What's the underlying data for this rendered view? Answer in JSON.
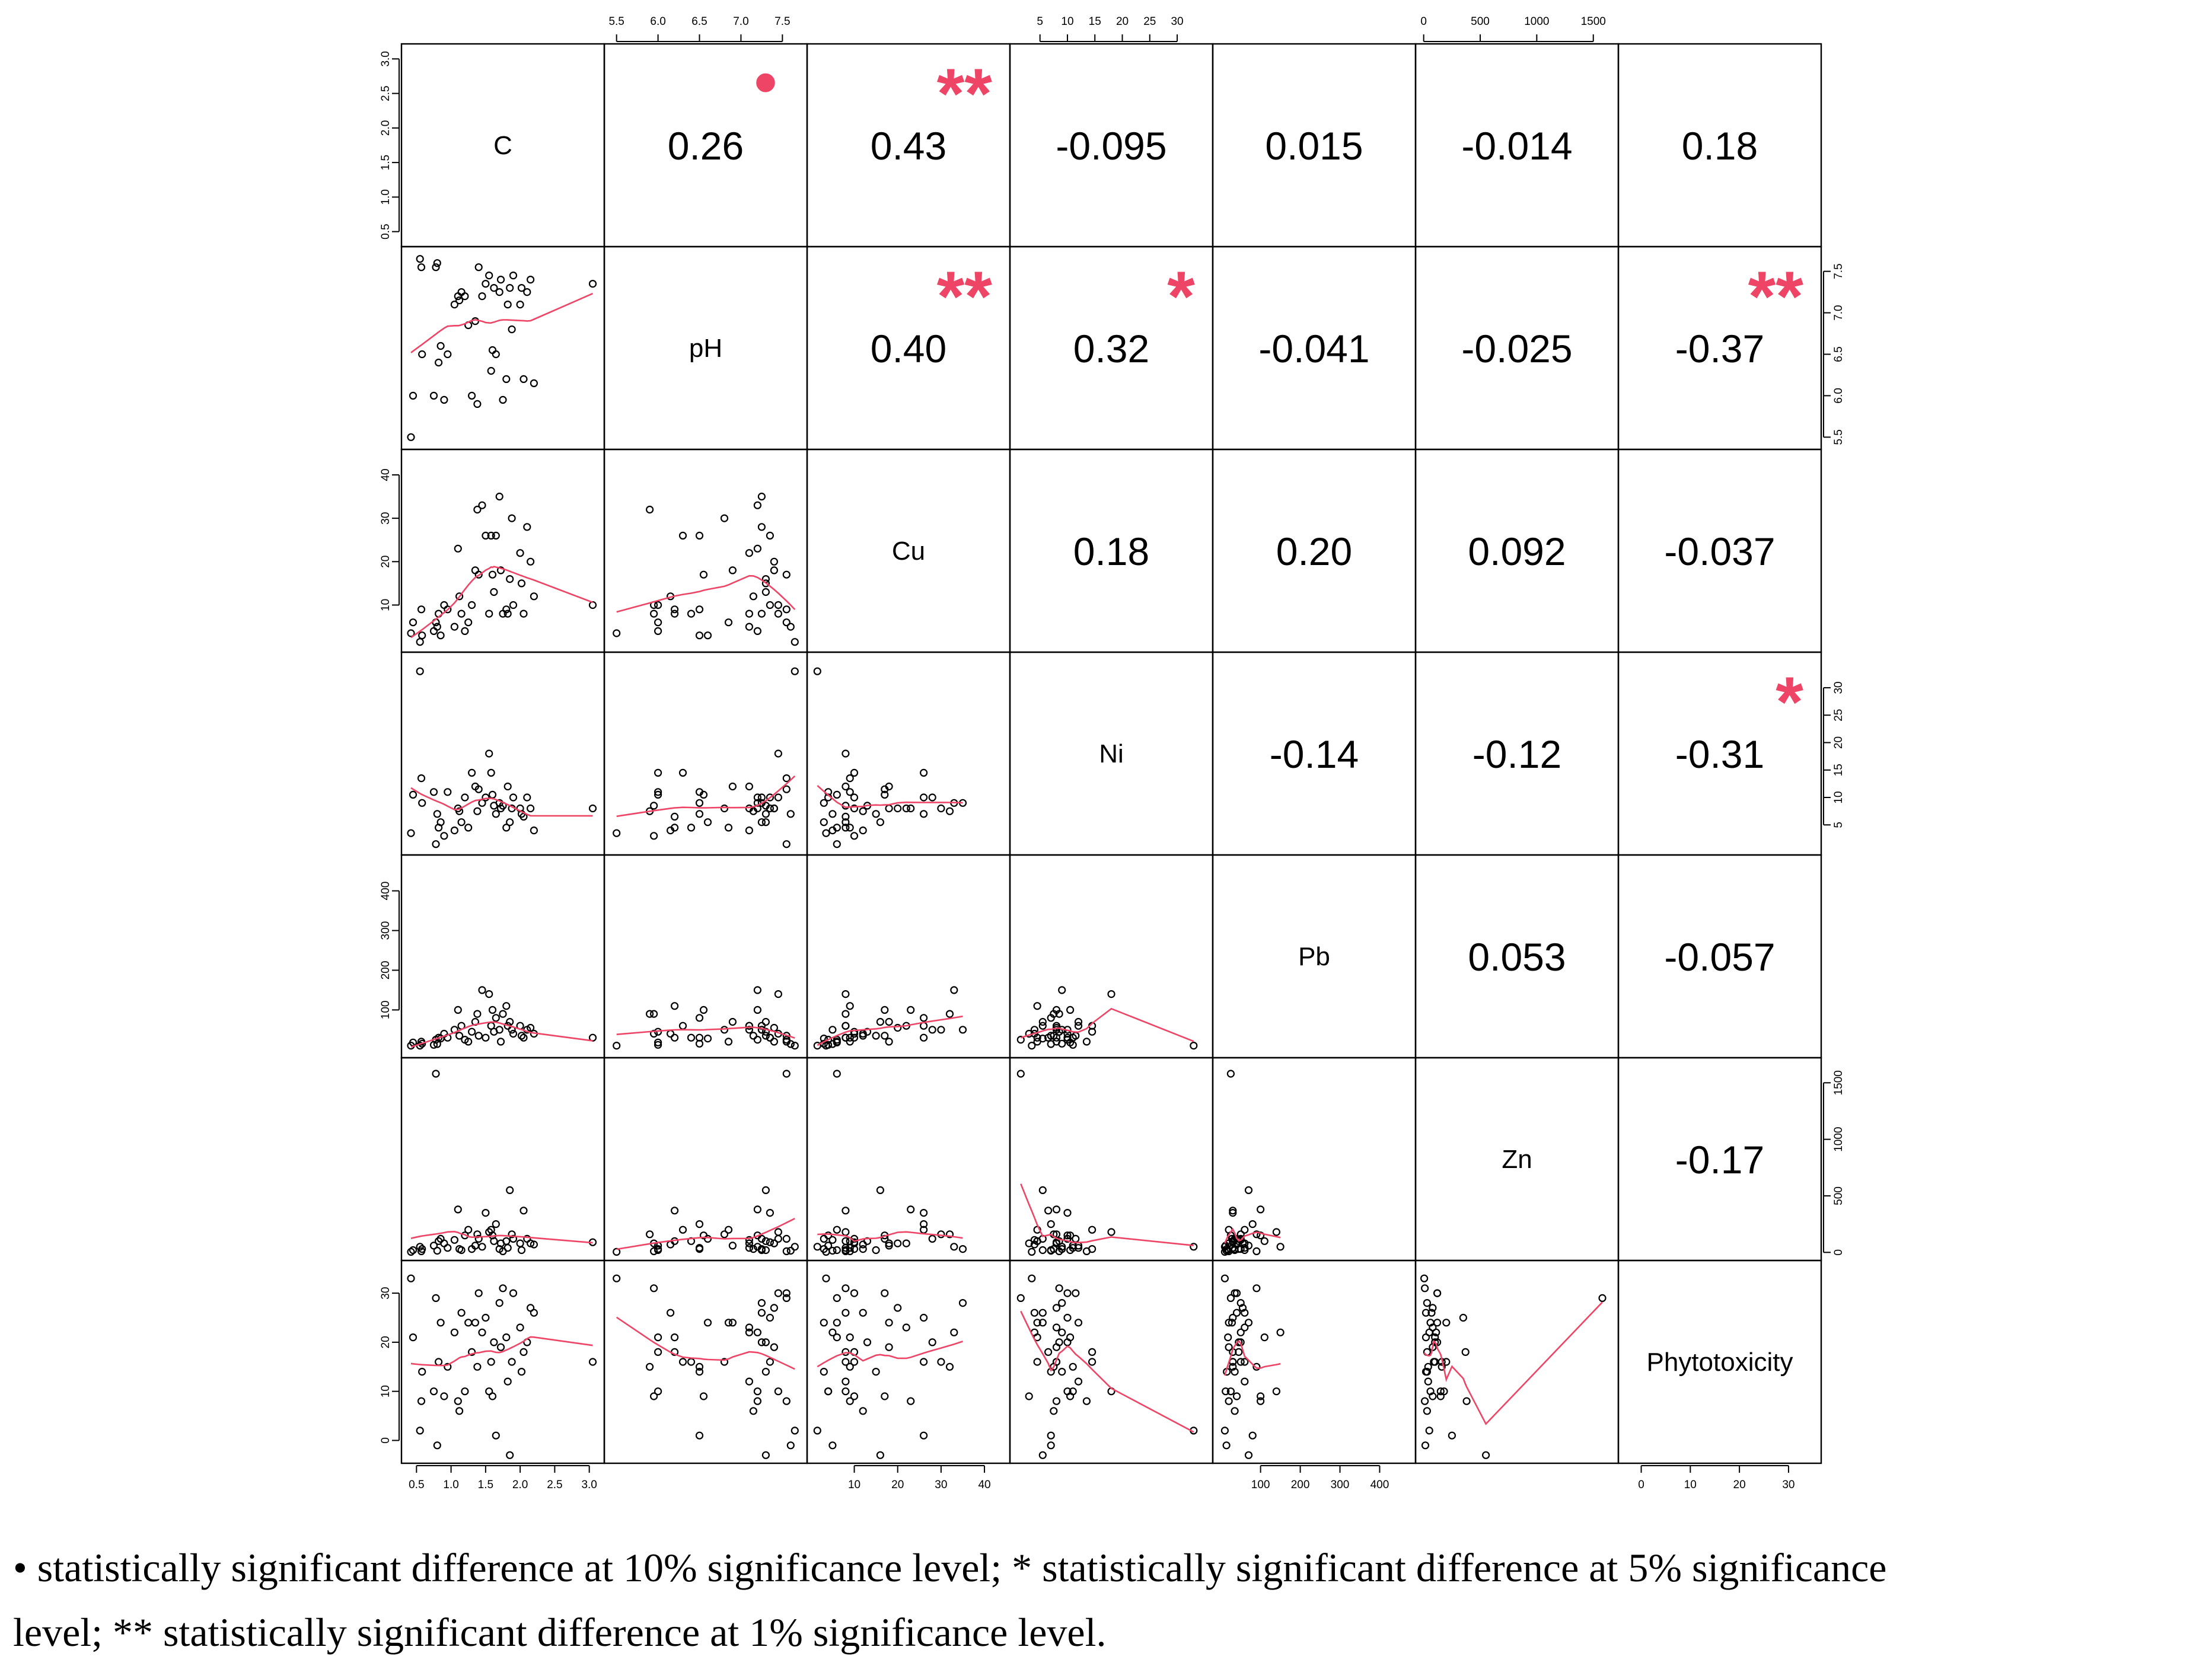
{
  "chart_data": {
    "type": "scatter",
    "title": "",
    "variables": [
      "C",
      "pH",
      "Cu",
      "Ni",
      "Pb",
      "Zn",
      "Phytotoxicity"
    ],
    "axis_ranges": {
      "C": [
        0.4,
        3.1
      ],
      "pH": [
        5.45,
        7.7
      ],
      "Cu": [
        1,
        44
      ],
      "Ni": [
        1,
        35
      ],
      "Pb": [
        0,
        470
      ],
      "Zn": [
        0,
        1650
      ],
      "Phytotoxicity": [
        -3,
        35
      ]
    },
    "ticks": {
      "C": [
        "0.5",
        "1.0",
        "1.5",
        "2.0",
        "2.5",
        "3.0"
      ],
      "pH": [
        "5.5",
        "6.0",
        "6.5",
        "7.0",
        "7.5"
      ],
      "Cu": [
        "10",
        "20",
        "30",
        "40"
      ],
      "Ni": [
        "5",
        "10",
        "15",
        "20",
        "25",
        "30"
      ],
      "Pb": [
        "100",
        "200",
        "300",
        "400"
      ],
      "Zn": [
        "0",
        "500",
        "1000",
        "1500"
      ],
      "Phytotoxicity": [
        "0",
        "10",
        "20",
        "30"
      ]
    },
    "correlations": [
      {
        "row": "C",
        "col": "pH",
        "r": "0.26",
        "sig": "•"
      },
      {
        "row": "C",
        "col": "Cu",
        "r": "0.43",
        "sig": "**"
      },
      {
        "row": "C",
        "col": "Ni",
        "r": "-0.095",
        "sig": ""
      },
      {
        "row": "C",
        "col": "Pb",
        "r": "0.015",
        "sig": ""
      },
      {
        "row": "C",
        "col": "Zn",
        "r": "-0.014",
        "sig": ""
      },
      {
        "row": "C",
        "col": "Phytotoxicity",
        "r": "0.18",
        "sig": ""
      },
      {
        "row": "pH",
        "col": "Cu",
        "r": "0.40",
        "sig": "**"
      },
      {
        "row": "pH",
        "col": "Ni",
        "r": "0.32",
        "sig": "*"
      },
      {
        "row": "pH",
        "col": "Pb",
        "r": "-0.041",
        "sig": ""
      },
      {
        "row": "pH",
        "col": "Zn",
        "r": "-0.025",
        "sig": ""
      },
      {
        "row": "pH",
        "col": "Phytotoxicity",
        "r": "-0.37",
        "sig": "**"
      },
      {
        "row": "Cu",
        "col": "Ni",
        "r": "0.18",
        "sig": ""
      },
      {
        "row": "Cu",
        "col": "Pb",
        "r": "0.20",
        "sig": ""
      },
      {
        "row": "Cu",
        "col": "Zn",
        "r": "0.092",
        "sig": ""
      },
      {
        "row": "Cu",
        "col": "Phytotoxicity",
        "r": "-0.037",
        "sig": ""
      },
      {
        "row": "Ni",
        "col": "Pb",
        "r": "-0.14",
        "sig": ""
      },
      {
        "row": "Ni",
        "col": "Zn",
        "r": "-0.12",
        "sig": ""
      },
      {
        "row": "Ni",
        "col": "Phytotoxicity",
        "r": "-0.31",
        "sig": "*"
      },
      {
        "row": "Pb",
        "col": "Zn",
        "r": "0.053",
        "sig": ""
      },
      {
        "row": "Pb",
        "col": "Phytotoxicity",
        "r": "-0.057",
        "sig": ""
      },
      {
        "row": "Zn",
        "col": "Phytotoxicity",
        "r": "-0.17",
        "sig": ""
      }
    ],
    "observations": [
      {
        "C": 0.42,
        "pH": 5.5,
        "Cu": 3.5,
        "Ni": 3.5,
        "Pb": 10,
        "Zn": 5,
        "Phytotoxicity": 33
      },
      {
        "C": 0.45,
        "pH": 6.0,
        "Cu": 6,
        "Ni": 10.5,
        "Pb": 18,
        "Zn": 20,
        "Phytotoxicity": 21
      },
      {
        "C": 0.55,
        "pH": 7.65,
        "Cu": 1.5,
        "Ni": 33,
        "Pb": 10,
        "Zn": 50,
        "Phytotoxicity": 2
      },
      {
        "C": 0.57,
        "pH": 7.55,
        "Cu": 9,
        "Ni": 13.5,
        "Pb": 20,
        "Zn": 10,
        "Phytotoxicity": 8
      },
      {
        "C": 0.58,
        "pH": 6.5,
        "Cu": 3,
        "Ni": 9,
        "Pb": 15,
        "Zn": 30,
        "Phytotoxicity": 14
      },
      {
        "C": 0.75,
        "pH": 6.0,
        "Cu": 4,
        "Ni": 11,
        "Pb": 12,
        "Zn": 60,
        "Phytotoxicity": 10
      },
      {
        "C": 0.78,
        "pH": 7.55,
        "Cu": 6,
        "Ni": 1.5,
        "Pb": 25,
        "Zn": 1580,
        "Phytotoxicity": 29
      },
      {
        "C": 0.8,
        "pH": 7.6,
        "Cu": 5,
        "Ni": 7,
        "Pb": 14,
        "Zn": 15,
        "Phytotoxicity": -1
      },
      {
        "C": 0.82,
        "pH": 6.4,
        "Cu": 8,
        "Ni": 4.5,
        "Pb": 30,
        "Zn": 100,
        "Phytotoxicity": 16
      },
      {
        "C": 0.85,
        "pH": 6.6,
        "Cu": 3,
        "Ni": 5.5,
        "Pb": 28,
        "Zn": 120,
        "Phytotoxicity": 24
      },
      {
        "C": 0.9,
        "pH": 5.95,
        "Cu": 10,
        "Ni": 3,
        "Pb": 40,
        "Zn": 80,
        "Phytotoxicity": 9
      },
      {
        "C": 0.95,
        "pH": 6.5,
        "Cu": 9,
        "Ni": 11,
        "Pb": 30,
        "Zn": 40,
        "Phytotoxicity": 15
      },
      {
        "C": 1.05,
        "pH": 7.1,
        "Cu": 5,
        "Ni": 4,
        "Pb": 50,
        "Zn": 110,
        "Phytotoxicity": 22
      },
      {
        "C": 1.1,
        "pH": 7.2,
        "Cu": 23,
        "Ni": 8,
        "Pb": 100,
        "Zn": 380,
        "Phytotoxicity": 8
      },
      {
        "C": 1.12,
        "pH": 7.15,
        "Cu": 12,
        "Ni": 7.5,
        "Pb": 35,
        "Zn": 30,
        "Phytotoxicity": 6
      },
      {
        "C": 1.15,
        "pH": 7.25,
        "Cu": 8,
        "Ni": 5.5,
        "Pb": 60,
        "Zn": 20,
        "Phytotoxicity": 26
      },
      {
        "C": 1.2,
        "pH": 7.2,
        "Cu": 4,
        "Ni": 10,
        "Pb": 25,
        "Zn": 150,
        "Phytotoxicity": 10
      },
      {
        "C": 1.25,
        "pH": 6.85,
        "Cu": 6,
        "Ni": 4.5,
        "Pb": 20,
        "Zn": 200,
        "Phytotoxicity": 24
      },
      {
        "C": 1.3,
        "pH": 6.0,
        "Cu": 10,
        "Ni": 14.5,
        "Pb": 45,
        "Zn": 30,
        "Phytotoxicity": 18
      },
      {
        "C": 1.35,
        "pH": 6.9,
        "Cu": 18,
        "Ni": 12,
        "Pb": 70,
        "Zn": 60,
        "Phytotoxicity": 24
      },
      {
        "C": 1.38,
        "pH": 5.9,
        "Cu": 32,
        "Ni": 7.5,
        "Pb": 90,
        "Zn": 160,
        "Phytotoxicity": 15
      },
      {
        "C": 1.4,
        "pH": 7.55,
        "Cu": 17,
        "Ni": 11.5,
        "Pb": 35,
        "Zn": 120,
        "Phytotoxicity": 30
      },
      {
        "C": 1.45,
        "pH": 7.2,
        "Cu": 33,
        "Ni": 9,
        "Pb": 150,
        "Zn": 50,
        "Phytotoxicity": 22
      },
      {
        "C": 1.5,
        "pH": 7.35,
        "Cu": 26,
        "Ni": 10,
        "Pb": 30,
        "Zn": 350,
        "Phytotoxicity": 25
      },
      {
        "C": 1.55,
        "pH": 7.45,
        "Cu": 8,
        "Ni": 18,
        "Pb": 140,
        "Zn": 180,
        "Phytotoxicity": 10
      },
      {
        "C": 1.58,
        "pH": 6.3,
        "Cu": 26,
        "Ni": 14.5,
        "Pb": 60,
        "Zn": 200,
        "Phytotoxicity": 16
      },
      {
        "C": 1.6,
        "pH": 6.55,
        "Cu": 17,
        "Ni": 10.5,
        "Pb": 100,
        "Zn": 150,
        "Phytotoxicity": 9
      },
      {
        "C": 1.62,
        "pH": 7.3,
        "Cu": 13,
        "Ni": 8.5,
        "Pb": 45,
        "Zn": 100,
        "Phytotoxicity": 20
      },
      {
        "C": 1.65,
        "pH": 6.5,
        "Cu": 26,
        "Ni": 7,
        "Pb": 80,
        "Zn": 250,
        "Phytotoxicity": 1
      },
      {
        "C": 1.7,
        "pH": 7.25,
        "Cu": 35,
        "Ni": 9,
        "Pb": 50,
        "Zn": 30,
        "Phytotoxicity": 28
      },
      {
        "C": 1.72,
        "pH": 7.4,
        "Cu": 18,
        "Ni": 8,
        "Pb": 20,
        "Zn": 80,
        "Phytotoxicity": 19
      },
      {
        "C": 1.75,
        "pH": 5.95,
        "Cu": 8,
        "Ni": 8.5,
        "Pb": 90,
        "Zn": 10,
        "Phytotoxicity": 31
      },
      {
        "C": 1.8,
        "pH": 6.2,
        "Cu": 9,
        "Ni": 4.5,
        "Pb": 110,
        "Zn": 100,
        "Phytotoxicity": 21
      },
      {
        "C": 1.82,
        "pH": 7.1,
        "Cu": 8,
        "Ni": 12,
        "Pb": 60,
        "Zn": 40,
        "Phytotoxicity": 12
      },
      {
        "C": 1.85,
        "pH": 7.3,
        "Cu": 16,
        "Ni": 5.5,
        "Pb": 70,
        "Zn": 550,
        "Phytotoxicity": -3
      },
      {
        "C": 1.88,
        "pH": 6.8,
        "Cu": 30,
        "Ni": 8,
        "Pb": 50,
        "Zn": 160,
        "Phytotoxicity": 16
      },
      {
        "C": 1.9,
        "pH": 7.45,
        "Cu": 10,
        "Ni": 10,
        "Pb": 40,
        "Zn": 120,
        "Phytotoxicity": 30
      },
      {
        "C": 2.0,
        "pH": 7.1,
        "Cu": 22,
        "Ni": 8,
        "Pb": 60,
        "Zn": 80,
        "Phytotoxicity": 23
      },
      {
        "C": 2.02,
        "pH": 7.3,
        "Cu": 15,
        "Ni": 7,
        "Pb": 35,
        "Zn": 20,
        "Phytotoxicity": 14
      },
      {
        "C": 2.05,
        "pH": 6.2,
        "Cu": 8,
        "Ni": 6.5,
        "Pb": 30,
        "Zn": 370,
        "Phytotoxicity": 18
      },
      {
        "C": 2.1,
        "pH": 7.25,
        "Cu": 28,
        "Ni": 10,
        "Pb": 50,
        "Zn": 120,
        "Phytotoxicity": 20
      },
      {
        "C": 2.15,
        "pH": 7.4,
        "Cu": 20,
        "Ni": 8,
        "Pb": 55,
        "Zn": 80,
        "Phytotoxicity": 27
      },
      {
        "C": 2.2,
        "pH": 6.15,
        "Cu": 12,
        "Ni": 4,
        "Pb": 40,
        "Zn": 70,
        "Phytotoxicity": 26
      },
      {
        "C": 3.05,
        "pH": 7.35,
        "Cu": 10,
        "Ni": 8,
        "Pb": 30,
        "Zn": 90,
        "Phytotoxicity": 16
      }
    ],
    "smoother": "loess",
    "colors": {
      "points": "#000000",
      "smoother": "#ee4466",
      "significance": "#ee4466"
    }
  },
  "footnote": {
    "line1": "• statistically significant difference at 10% significance level; * statistically significant difference at 5% significance",
    "line2": "level; ** statistically significant difference at 1% significance level."
  }
}
